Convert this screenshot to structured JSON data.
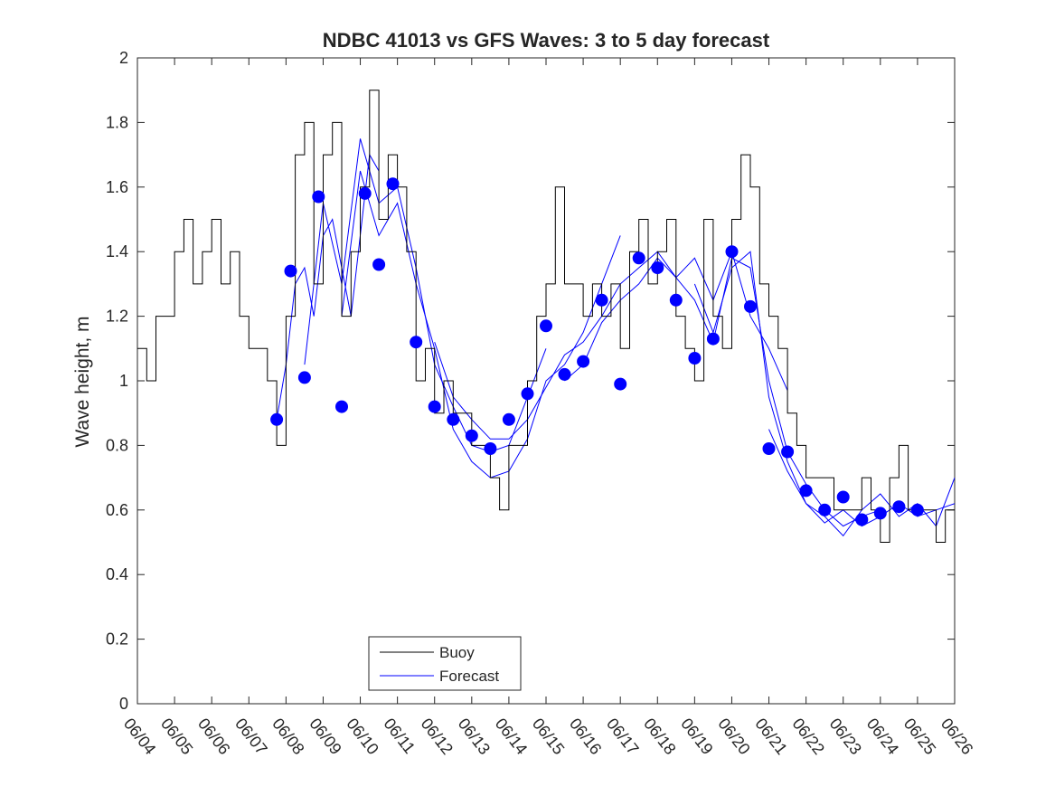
{
  "chart_data": {
    "type": "line",
    "title": "NDBC 41013 vs GFS Waves: 3 to 5 day forecast",
    "xlabel": "",
    "ylabel": "Wave height, m",
    "xlim": [
      "06/04",
      "06/26"
    ],
    "ylim": [
      0,
      2
    ],
    "grid": false,
    "legend": "bottom-center",
    "x_tick_labels": [
      "06/04",
      "06/05",
      "06/06",
      "06/07",
      "06/08",
      "06/09",
      "06/10",
      "06/11",
      "06/12",
      "06/13",
      "06/14",
      "06/15",
      "06/16",
      "06/17",
      "06/18",
      "06/19",
      "06/20",
      "06/21",
      "06/22",
      "06/23",
      "06/24",
      "06/25",
      "06/26"
    ],
    "y_ticks": [
      0,
      0.2,
      0.4,
      0.6,
      0.8,
      1,
      1.2,
      1.4,
      1.6,
      1.8,
      2
    ],
    "y_tick_labels": [
      "0",
      "0.2",
      "0.4",
      "0.6",
      "0.8",
      "1",
      "1.2",
      "1.4",
      "1.6",
      "1.8",
      "2"
    ],
    "colors": {
      "buoy": "#000000",
      "forecast": "#0000ff",
      "markers": "#0000ff"
    },
    "series": [
      {
        "name": "Buoy",
        "style": "step-line",
        "x": [
          "06/04 00:00",
          "06/04 06:00",
          "06/04 12:00",
          "06/04 18:00",
          "06/05 00:00",
          "06/05 06:00",
          "06/05 12:00",
          "06/05 18:00",
          "06/06 00:00",
          "06/06 06:00",
          "06/06 12:00",
          "06/06 18:00",
          "06/07 00:00",
          "06/07 06:00",
          "06/07 12:00",
          "06/07 18:00",
          "06/08 00:00",
          "06/08 06:00",
          "06/08 12:00",
          "06/08 18:00",
          "06/09 00:00",
          "06/09 06:00",
          "06/09 12:00",
          "06/09 18:00",
          "06/10 00:00",
          "06/10 06:00",
          "06/10 12:00",
          "06/10 18:00",
          "06/11 00:00",
          "06/11 06:00",
          "06/11 12:00",
          "06/11 18:00",
          "06/12 00:00",
          "06/12 06:00",
          "06/12 12:00",
          "06/12 18:00",
          "06/13 00:00",
          "06/13 06:00",
          "06/13 12:00",
          "06/13 18:00",
          "06/14 00:00",
          "06/14 06:00",
          "06/14 12:00",
          "06/14 18:00",
          "06/15 00:00",
          "06/15 06:00",
          "06/15 12:00",
          "06/15 18:00",
          "06/16 00:00",
          "06/16 06:00",
          "06/16 12:00",
          "06/16 18:00",
          "06/17 00:00",
          "06/17 06:00",
          "06/17 12:00",
          "06/17 18:00",
          "06/18 00:00",
          "06/18 06:00",
          "06/18 12:00",
          "06/18 18:00",
          "06/19 00:00",
          "06/19 06:00",
          "06/19 12:00",
          "06/19 18:00",
          "06/20 00:00",
          "06/20 06:00",
          "06/20 12:00",
          "06/20 18:00",
          "06/21 00:00",
          "06/21 06:00",
          "06/21 12:00",
          "06/21 18:00",
          "06/22 00:00",
          "06/22 06:00",
          "06/22 12:00",
          "06/22 18:00",
          "06/23 00:00",
          "06/23 06:00",
          "06/23 12:00",
          "06/23 18:00",
          "06/24 00:00",
          "06/24 06:00",
          "06/24 12:00",
          "06/24 18:00",
          "06/25 00:00",
          "06/25 06:00",
          "06/25 12:00",
          "06/25 18:00",
          "06/26 00:00"
        ],
        "values": [
          1.1,
          1.0,
          1.2,
          1.2,
          1.4,
          1.5,
          1.3,
          1.4,
          1.5,
          1.3,
          1.4,
          1.2,
          1.1,
          1.1,
          1.0,
          0.8,
          1.2,
          1.7,
          1.8,
          1.3,
          1.7,
          1.8,
          1.2,
          1.4,
          1.6,
          1.9,
          1.5,
          1.7,
          1.6,
          1.4,
          1.0,
          1.1,
          0.9,
          1.0,
          0.9,
          0.9,
          0.8,
          0.8,
          0.7,
          0.6,
          0.8,
          0.8,
          1.0,
          1.2,
          1.3,
          1.6,
          1.3,
          1.3,
          1.2,
          1.3,
          1.2,
          1.3,
          1.1,
          1.4,
          1.5,
          1.3,
          1.4,
          1.5,
          1.2,
          1.1,
          1.0,
          1.5,
          1.2,
          1.1,
          1.5,
          1.7,
          1.6,
          1.3,
          1.2,
          1.1,
          0.9,
          0.8,
          0.7,
          0.7,
          0.7,
          0.6,
          0.6,
          0.6,
          0.7,
          0.6,
          0.5,
          0.7,
          0.8,
          0.6,
          0.6,
          0.6,
          0.5,
          0.6,
          0.6
        ]
      },
      {
        "name": "Forecast",
        "style": "line",
        "runs": [
          {
            "x": [
              "06/07 18:00",
              "06/08 00:00",
              "06/08 06:00",
              "06/08 12:00",
              "06/08 18:00",
              "06/09 00:00",
              "06/09 06:00",
              "06/09 12:00",
              "06/09 18:00",
              "06/10 00:00",
              "06/10 06:00",
              "06/10 12:00"
            ],
            "values": [
              0.88,
              1.05,
              1.3,
              1.35,
              1.2,
              1.45,
              1.5,
              1.35,
              1.2,
              1.45,
              1.7,
              1.65
            ]
          },
          {
            "x": [
              "06/08 12:00",
              "06/09 00:00",
              "06/09 12:00",
              "06/10 00:00",
              "06/10 12:00",
              "06/11 00:00",
              "06/11 12:00",
              "06/12 00:00",
              "06/12 12:00",
              "06/13 00:00",
              "06/13 12:00",
              "06/14 00:00",
              "06/14 12:00",
              "06/15 00:00"
            ],
            "values": [
              1.05,
              1.55,
              1.3,
              1.75,
              1.55,
              1.6,
              1.35,
              1.05,
              0.92,
              0.8,
              0.78,
              0.8,
              0.95,
              1.1
            ]
          },
          {
            "x": [
              "06/09 12:00",
              "06/10 00:00",
              "06/10 12:00",
              "06/11 00:00",
              "06/11 12:00",
              "06/12 00:00",
              "06/12 12:00",
              "06/13 00:00",
              "06/13 12:00",
              "06/14 00:00",
              "06/14 12:00",
              "06/15 00:00",
              "06/15 12:00",
              "06/16 00:00",
              "06/16 12:00",
              "06/17 00:00"
            ],
            "values": [
              1.2,
              1.65,
              1.45,
              1.55,
              1.3,
              1.1,
              0.85,
              0.75,
              0.7,
              0.72,
              0.82,
              1.0,
              1.05,
              1.15,
              1.3,
              1.45
            ]
          },
          {
            "x": [
              "06/12 00:00",
              "06/12 12:00",
              "06/13 00:00",
              "06/13 12:00",
              "06/14 00:00",
              "06/14 12:00",
              "06/15 00:00",
              "06/15 12:00",
              "06/16 00:00",
              "06/16 12:00",
              "06/17 00:00",
              "06/17 12:00",
              "06/18 00:00",
              "06/18 12:00",
              "06/19 00:00",
              "06/19 12:00",
              "06/20 00:00",
              "06/20 12:00",
              "06/21 00:00",
              "06/21 12:00"
            ],
            "values": [
              1.12,
              0.95,
              0.88,
              0.82,
              0.82,
              0.88,
              0.98,
              1.08,
              1.12,
              1.2,
              1.3,
              1.35,
              1.4,
              1.32,
              1.38,
              1.25,
              1.4,
              1.2,
              1.1,
              0.97
            ]
          },
          {
            "x": [
              "06/15 12:00",
              "06/16 00:00",
              "06/16 12:00",
              "06/17 00:00",
              "06/17 12:00",
              "06/18 00:00",
              "06/18 12:00",
              "06/19 00:00",
              "06/19 12:00",
              "06/20 00:00",
              "06/20 12:00",
              "06/21 00:00",
              "06/21 12:00",
              "06/22 00:00",
              "06/22 12:00",
              "06/23 00:00",
              "06/23 12:00",
              "06/24 00:00"
            ],
            "values": [
              1.0,
              1.05,
              1.18,
              1.25,
              1.3,
              1.38,
              1.32,
              1.25,
              1.12,
              1.38,
              1.35,
              1.0,
              0.78,
              0.68,
              0.6,
              0.55,
              0.58,
              0.6
            ]
          },
          {
            "x": [
              "06/19 00:00",
              "06/19 12:00",
              "06/20 00:00",
              "06/20 12:00",
              "06/21 00:00",
              "06/21 12:00",
              "06/22 00:00",
              "06/22 12:00",
              "06/23 00:00",
              "06/23 12:00",
              "06/24 00:00",
              "06/24 12:00",
              "06/25 00:00",
              "06/25 12:00",
              "06/26 00:00"
            ],
            "values": [
              1.3,
              1.15,
              1.35,
              1.4,
              0.95,
              0.75,
              0.62,
              0.58,
              0.52,
              0.6,
              0.65,
              0.58,
              0.62,
              0.55,
              0.7
            ]
          },
          {
            "x": [
              "06/21 00:00",
              "06/21 12:00",
              "06/22 00:00",
              "06/22 12:00",
              "06/23 00:00",
              "06/23 12:00",
              "06/24 00:00",
              "06/24 12:00",
              "06/25 00:00",
              "06/25 12:00",
              "06/26 00:00"
            ],
            "values": [
              0.85,
              0.72,
              0.62,
              0.56,
              0.6,
              0.55,
              0.58,
              0.62,
              0.58,
              0.6,
              0.62
            ]
          }
        ]
      },
      {
        "name": "",
        "style": "markers",
        "x": [
          "06/07 18:00",
          "06/08 03:00",
          "06/08 12:00",
          "06/08 21:00",
          "06/09 12:00",
          "06/10 03:00",
          "06/10 12:00",
          "06/10 21:00",
          "06/11 12:00",
          "06/12 00:00",
          "06/12 12:00",
          "06/13 00:00",
          "06/13 12:00",
          "06/14 00:00",
          "06/14 12:00",
          "06/15 00:00",
          "06/15 12:00",
          "06/16 00:00",
          "06/16 12:00",
          "06/17 00:00",
          "06/17 12:00",
          "06/18 00:00",
          "06/18 12:00",
          "06/19 00:00",
          "06/19 12:00",
          "06/20 00:00",
          "06/20 12:00",
          "06/21 00:00",
          "06/21 12:00",
          "06/22 00:00",
          "06/22 12:00",
          "06/23 00:00",
          "06/23 12:00",
          "06/24 00:00",
          "06/24 12:00",
          "06/25 00:00"
        ],
        "values": [
          0.88,
          1.34,
          1.01,
          1.57,
          0.92,
          1.58,
          1.36,
          1.61,
          1.12,
          0.92,
          0.88,
          0.83,
          0.79,
          0.88,
          0.96,
          1.17,
          1.02,
          1.06,
          1.25,
          0.99,
          1.38,
          1.35,
          1.25,
          1.07,
          1.13,
          1.4,
          1.23,
          0.79,
          0.78,
          0.66,
          0.6,
          0.64,
          0.57,
          0.59,
          0.61,
          0.6
        ]
      }
    ],
    "legend_entries": [
      "Buoy",
      "Forecast"
    ]
  }
}
